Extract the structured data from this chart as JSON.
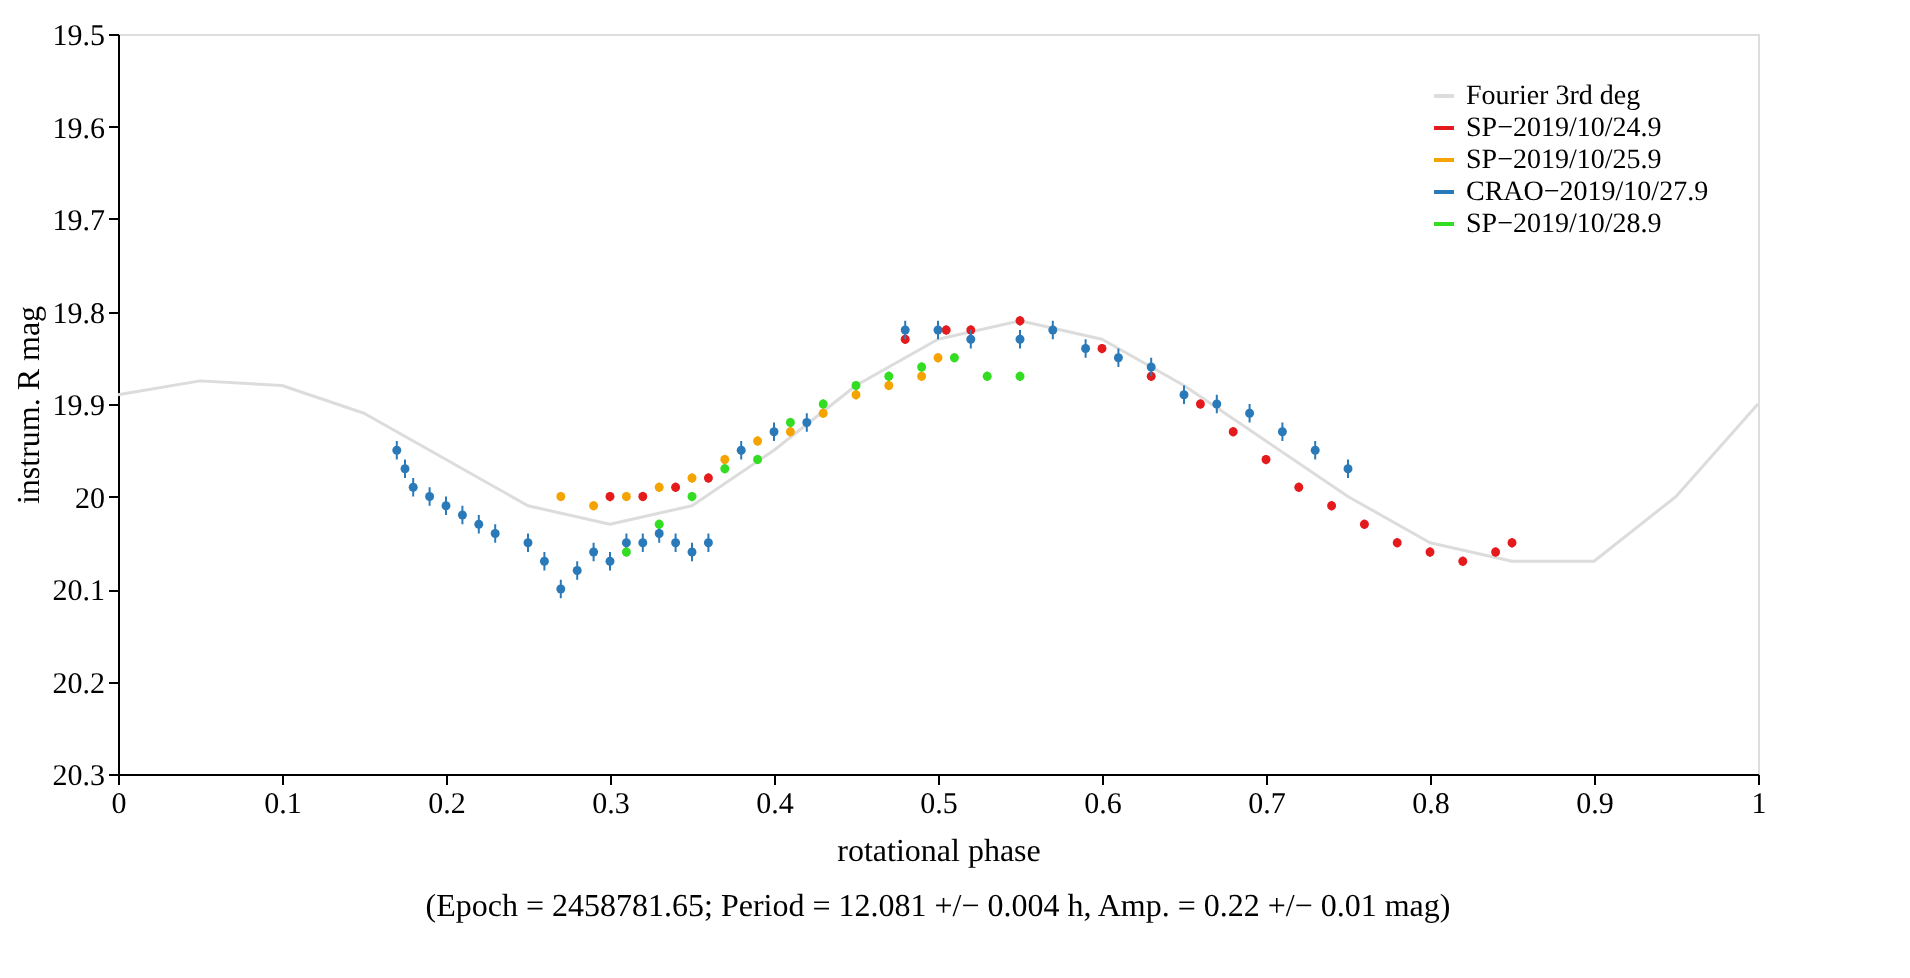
{
  "chart_data": {
    "type": "scatter",
    "xlabel": "rotational phase",
    "ylabel": "instrum. R mag",
    "annotations": [
      "(Epoch = 2458781.65; Period = 12.081 +/− 0.004 h, Amp. = 0.22 +/− 0.01 mag)"
    ],
    "xlim": [
      0,
      1
    ],
    "xticks": [
      0,
      0.1,
      0.2,
      0.3,
      0.4,
      0.5,
      0.6,
      0.7,
      0.8,
      0.9,
      1
    ],
    "ylim": [
      20.3,
      19.5
    ],
    "yticks": [
      19.5,
      19.6,
      19.7,
      19.8,
      19.9,
      20,
      20.1,
      20.2,
      20.3
    ],
    "grid": false,
    "legend": "top right",
    "marker": "circle",
    "series": [
      {
        "name": "Fourier 3rd deg",
        "type": "line",
        "line_style": "solid",
        "marker": "none",
        "color": "#dcdcdc",
        "x": [
          0,
          0.05,
          0.1,
          0.15,
          0.2,
          0.25,
          0.3,
          0.35,
          0.4,
          0.45,
          0.5,
          0.55,
          0.6,
          0.65,
          0.7,
          0.75,
          0.8,
          0.85,
          0.9,
          0.95,
          1
        ],
        "values": [
          19.89,
          19.875,
          19.88,
          19.91,
          19.96,
          20.01,
          20.03,
          20.01,
          19.95,
          19.88,
          19.83,
          19.81,
          19.83,
          19.88,
          19.94,
          20.0,
          20.05,
          20.07,
          20.07,
          20.0,
          19.9
        ]
      },
      {
        "name": "SP−2019/10/24.9",
        "color": "#e41a1c",
        "x": [
          0.3,
          0.32,
          0.34,
          0.36,
          0.48,
          0.505,
          0.52,
          0.55,
          0.6,
          0.63,
          0.66,
          0.68,
          0.7,
          0.72,
          0.74,
          0.76,
          0.78,
          0.8,
          0.82,
          0.84,
          0.85
        ],
        "values": [
          20.0,
          20.0,
          19.99,
          19.98,
          19.83,
          19.82,
          19.82,
          19.81,
          19.84,
          19.87,
          19.9,
          19.93,
          19.96,
          19.99,
          20.01,
          20.03,
          20.05,
          20.06,
          20.07,
          20.06,
          20.05
        ],
        "errors": [
          0.005,
          0.005,
          0.005,
          0.005,
          0.005,
          0.005,
          0.005,
          0.005,
          0.005,
          0.005,
          0.005,
          0.005,
          0.005,
          0.005,
          0.005,
          0.005,
          0.005,
          0.005,
          0.005,
          0.005,
          0.005
        ]
      },
      {
        "name": "SP−2019/10/25.9",
        "color": "#f5a300",
        "x": [
          0.27,
          0.29,
          0.31,
          0.33,
          0.35,
          0.37,
          0.39,
          0.41,
          0.43,
          0.45,
          0.47,
          0.49,
          0.5
        ],
        "values": [
          20.0,
          20.01,
          20.0,
          19.99,
          19.98,
          19.96,
          19.94,
          19.93,
          19.91,
          19.89,
          19.88,
          19.87,
          19.85
        ],
        "errors": [
          0.005,
          0.005,
          0.005,
          0.005,
          0.005,
          0.005,
          0.005,
          0.005,
          0.005,
          0.005,
          0.005,
          0.005,
          0.005
        ]
      },
      {
        "name": "CRAO−2019/10/27.9",
        "color": "#2a7ab9",
        "x": [
          0.17,
          0.175,
          0.18,
          0.19,
          0.2,
          0.21,
          0.22,
          0.23,
          0.25,
          0.26,
          0.27,
          0.28,
          0.29,
          0.3,
          0.31,
          0.32,
          0.33,
          0.34,
          0.35,
          0.36,
          0.38,
          0.4,
          0.42,
          0.48,
          0.5,
          0.52,
          0.55,
          0.57,
          0.59,
          0.61,
          0.63,
          0.65,
          0.67,
          0.69,
          0.71,
          0.73,
          0.75
        ],
        "values": [
          19.95,
          19.97,
          19.99,
          20.0,
          20.01,
          20.02,
          20.03,
          20.04,
          20.05,
          20.07,
          20.1,
          20.08,
          20.06,
          20.07,
          20.05,
          20.05,
          20.04,
          20.05,
          20.06,
          20.05,
          19.95,
          19.93,
          19.92,
          19.82,
          19.82,
          19.83,
          19.83,
          19.82,
          19.84,
          19.85,
          19.86,
          19.89,
          19.9,
          19.91,
          19.93,
          19.95,
          19.97
        ],
        "errors": [
          0.01,
          0.01,
          0.01,
          0.01,
          0.01,
          0.01,
          0.01,
          0.01,
          0.01,
          0.01,
          0.01,
          0.01,
          0.01,
          0.01,
          0.01,
          0.01,
          0.01,
          0.01,
          0.01,
          0.01,
          0.01,
          0.01,
          0.01,
          0.01,
          0.01,
          0.01,
          0.01,
          0.01,
          0.01,
          0.01,
          0.01,
          0.01,
          0.01,
          0.01,
          0.01,
          0.01,
          0.01
        ]
      },
      {
        "name": "SP−2019/10/28.9",
        "color": "#33dd22",
        "x": [
          0.31,
          0.33,
          0.35,
          0.37,
          0.39,
          0.41,
          0.43,
          0.45,
          0.47,
          0.49,
          0.51,
          0.53,
          0.55
        ],
        "values": [
          20.06,
          20.03,
          20.0,
          19.97,
          19.96,
          19.92,
          19.9,
          19.88,
          19.87,
          19.86,
          19.85,
          19.87,
          19.87
        ],
        "errors": [
          0.005,
          0.005,
          0.005,
          0.005,
          0.005,
          0.005,
          0.005,
          0.005,
          0.005,
          0.005,
          0.005,
          0.005,
          0.005
        ]
      }
    ]
  }
}
